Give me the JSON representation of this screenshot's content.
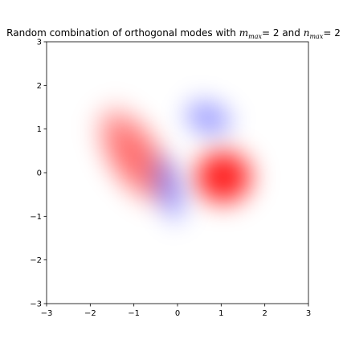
{
  "chart_data": {
    "type": "heatmap",
    "title": {
      "prefix": "Random combination of orthogonal modes with ",
      "m_symbol": "m",
      "m_sub": "max",
      "m_value": "= 2",
      "joiner": " and ",
      "n_symbol": "n",
      "n_sub": "max",
      "n_value": "= 2"
    },
    "xlabel": "",
    "ylabel": "",
    "xlim": [
      -3,
      3
    ],
    "ylim": [
      -3,
      3
    ],
    "xticks": [
      -3,
      -2,
      -1,
      0,
      1,
      2,
      3
    ],
    "yticks": [
      -3,
      -2,
      -1,
      0,
      1,
      2,
      3
    ],
    "colormap": "bwr",
    "colors": {
      "positive": "#ff0000",
      "negative": "#0000ff",
      "zero": "#ffffff"
    },
    "value_range": [
      -1,
      1
    ],
    "grid": false,
    "features": [
      {
        "sign": "positive",
        "center": [
          -1.0,
          0.4
        ],
        "peak": 0.6
      },
      {
        "sign": "positive",
        "center": [
          1.05,
          -0.1
        ],
        "peak": 1.0
      },
      {
        "sign": "negative",
        "center": [
          -0.2,
          -0.35
        ],
        "peak": 0.35
      },
      {
        "sign": "negative",
        "center": [
          0.7,
          1.25
        ],
        "peak": 0.35
      }
    ]
  }
}
